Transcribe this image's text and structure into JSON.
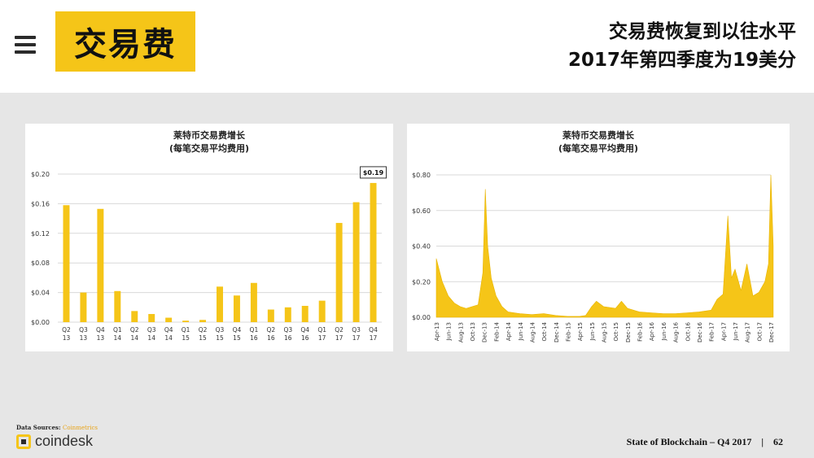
{
  "header": {
    "title": "交易费",
    "headline_line1": "交易费恢复到以往水平",
    "headline_line2": "2017年第四季度为19美分"
  },
  "colors": {
    "accent": "#f5c518",
    "bar": "#f5c518",
    "grid": "#d9d9d9"
  },
  "chart_data": [
    {
      "type": "bar",
      "title": "莱特币交易费增长",
      "subtitle": "(每笔交易平均费用)",
      "categories": [
        "Q2 13",
        "Q3 13",
        "Q4 13",
        "Q1 14",
        "Q2 14",
        "Q3 14",
        "Q4 14",
        "Q1 15",
        "Q2 15",
        "Q3 15",
        "Q4 15",
        "Q1 16",
        "Q2 16",
        "Q3 16",
        "Q4 16",
        "Q1 17",
        "Q2 17",
        "Q3 17",
        "Q4 17"
      ],
      "values": [
        0.158,
        0.04,
        0.153,
        0.042,
        0.015,
        0.011,
        0.006,
        0.002,
        0.003,
        0.048,
        0.036,
        0.053,
        0.017,
        0.02,
        0.022,
        0.029,
        0.134,
        0.162,
        0.188
      ],
      "yticks": [
        "$0.00",
        "$0.04",
        "$0.08",
        "$0.12",
        "$0.16",
        "$0.20"
      ],
      "ylim": [
        0,
        0.2
      ],
      "annotation": "$0.19",
      "grid": true
    },
    {
      "type": "area",
      "title": "莱特币交易费增长",
      "subtitle": "(每笔交易平均费用)",
      "xticks": [
        "Apr-13",
        "Jun-13",
        "Aug-13",
        "Oct-13",
        "Dec-13",
        "Feb-14",
        "Apr-14",
        "Jun-14",
        "Aug-14",
        "Oct-14",
        "Dec-14",
        "Feb-15",
        "Apr-15",
        "Jun-15",
        "Aug-15",
        "Oct-15",
        "Dec-15",
        "Feb-16",
        "Apr-16",
        "Jun-16",
        "Aug-16",
        "Oct-16",
        "Dec-16",
        "Feb-17",
        "Apr-17",
        "Jun-17",
        "Aug-17",
        "Oct-17",
        "Dec-17"
      ],
      "yticks": [
        "$0.00",
        "$0.20",
        "$0.40",
        "$0.60",
        "$0.80"
      ],
      "ylim": [
        0,
        0.8
      ],
      "series_points": [
        [
          0,
          0.33
        ],
        [
          0.5,
          0.2
        ],
        [
          1,
          0.12
        ],
        [
          1.5,
          0.08
        ],
        [
          2,
          0.06
        ],
        [
          2.5,
          0.05
        ],
        [
          3,
          0.06
        ],
        [
          3.5,
          0.07
        ],
        [
          3.9,
          0.25
        ],
        [
          4.1,
          0.72
        ],
        [
          4.3,
          0.4
        ],
        [
          4.6,
          0.22
        ],
        [
          5,
          0.12
        ],
        [
          5.5,
          0.06
        ],
        [
          6,
          0.03
        ],
        [
          7,
          0.02
        ],
        [
          8,
          0.015
        ],
        [
          9,
          0.02
        ],
        [
          10,
          0.01
        ],
        [
          11,
          0.005
        ],
        [
          12,
          0.005
        ],
        [
          12.5,
          0.01
        ],
        [
          13,
          0.06
        ],
        [
          13.4,
          0.09
        ],
        [
          14,
          0.06
        ],
        [
          15,
          0.05
        ],
        [
          15.5,
          0.09
        ],
        [
          16,
          0.05
        ],
        [
          17,
          0.03
        ],
        [
          18,
          0.025
        ],
        [
          19,
          0.02
        ],
        [
          20,
          0.02
        ],
        [
          21,
          0.025
        ],
        [
          22,
          0.03
        ],
        [
          23,
          0.04
        ],
        [
          23.5,
          0.1
        ],
        [
          24,
          0.13
        ],
        [
          24.4,
          0.57
        ],
        [
          24.7,
          0.22
        ],
        [
          25,
          0.27
        ],
        [
          25.5,
          0.15
        ],
        [
          26,
          0.3
        ],
        [
          26.5,
          0.12
        ],
        [
          27,
          0.14
        ],
        [
          27.5,
          0.2
        ],
        [
          27.8,
          0.3
        ],
        [
          28,
          0.8
        ],
        [
          28.2,
          0.4
        ]
      ],
      "grid": true
    }
  ],
  "footer": {
    "sources_label": "Data Sources:",
    "sources_value": "Coinmetrics",
    "logo_text": "coindesk",
    "report": "State of Blockchain – Q4 2017",
    "separator": "|",
    "page_number": "62"
  }
}
